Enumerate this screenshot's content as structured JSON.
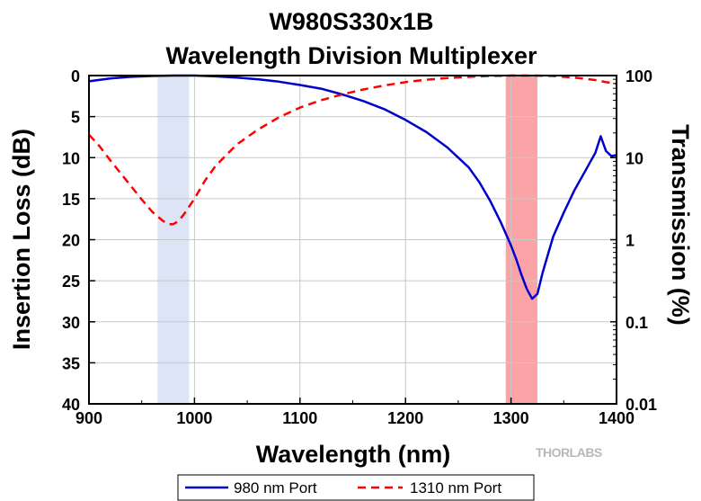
{
  "chart_data": {
    "type": "line",
    "title_line1": "W980S330x1B",
    "title_line2": "Wavelength Division Multiplexer",
    "xlabel": "Wavelength (nm)",
    "ylabel": "Insertion Loss (dB)",
    "y2label": "Transmission (%)",
    "xlim": [
      900,
      1400
    ],
    "ylim": [
      0,
      40
    ],
    "y_inverted": true,
    "y2lim": [
      0.01,
      100
    ],
    "y2_scale": "log",
    "grid": true,
    "x_ticks": [
      "900",
      "1000",
      "1100",
      "1200",
      "1300",
      "1400"
    ],
    "y_ticks": [
      "0",
      "5",
      "10",
      "15",
      "20",
      "25",
      "30",
      "35",
      "40"
    ],
    "y2_ticks": [
      "100",
      "10",
      "1",
      "0.1",
      "0.01"
    ],
    "legend_position": "bottom",
    "bands": [
      {
        "x0": 965,
        "x1": 995,
        "color": "#dce4f6"
      },
      {
        "x0": 1295,
        "x1": 1325,
        "color": "#fba3a6"
      }
    ],
    "series": [
      {
        "name": "980 nm Port",
        "color": "#0000cc",
        "dash": "solid",
        "x": [
          900,
          920,
          940,
          960,
          980,
          1000,
          1020,
          1040,
          1060,
          1080,
          1100,
          1120,
          1140,
          1160,
          1180,
          1200,
          1220,
          1240,
          1260,
          1270,
          1280,
          1290,
          1300,
          1305,
          1310,
          1315,
          1320,
          1325,
          1330,
          1340,
          1350,
          1360,
          1370,
          1380,
          1385,
          1390,
          1395,
          1400
        ],
        "y": [
          0.7,
          0.35,
          0.15,
          0.05,
          0.0,
          0.0,
          0.1,
          0.25,
          0.45,
          0.75,
          1.15,
          1.6,
          2.3,
          3.1,
          4.1,
          5.4,
          6.9,
          8.8,
          11.2,
          13.0,
          15.2,
          17.8,
          20.7,
          22.4,
          24.3,
          26.0,
          27.2,
          26.6,
          24.0,
          19.6,
          16.7,
          14.0,
          11.7,
          9.4,
          7.4,
          9.2,
          9.8,
          9.7
        ]
      },
      {
        "name": "1310 nm Port",
        "color": "#ff0000",
        "dash": "dashed",
        "x": [
          900,
          910,
          920,
          930,
          940,
          950,
          960,
          970,
          975,
          980,
          985,
          990,
          1000,
          1010,
          1020,
          1040,
          1060,
          1080,
          1100,
          1120,
          1140,
          1160,
          1180,
          1200,
          1220,
          1240,
          1260,
          1280,
          1300,
          1320,
          1340,
          1360,
          1380,
          1390,
          1400
        ],
        "y": [
          7.2,
          8.6,
          10.3,
          11.9,
          13.5,
          15.1,
          16.6,
          17.7,
          18.1,
          18.1,
          17.7,
          16.9,
          15.0,
          12.8,
          11.0,
          8.4,
          6.6,
          5.1,
          3.9,
          3.0,
          2.3,
          1.7,
          1.2,
          0.8,
          0.5,
          0.3,
          0.15,
          0.05,
          0.0,
          0.0,
          0.05,
          0.25,
          0.55,
          0.8,
          1.0
        ]
      }
    ]
  },
  "legend": {
    "items": [
      "980 nm Port",
      "1310 nm Port"
    ]
  },
  "brand": {
    "text": "THORLABS"
  }
}
